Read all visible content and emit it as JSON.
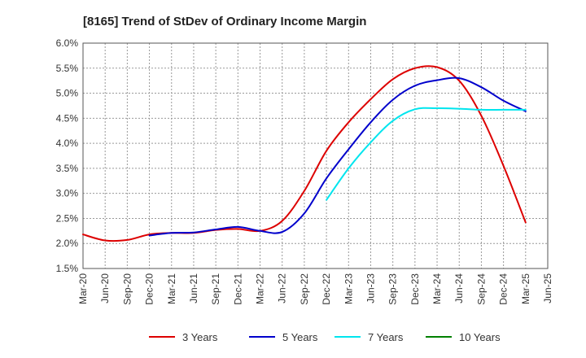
{
  "chart_data": {
    "type": "line",
    "title": "[8165]  Trend of StDev of Ordinary Income Margin",
    "xlabel": "",
    "ylabel": "",
    "x_ticks": [
      "Mar-20",
      "Jun-20",
      "Sep-20",
      "Dec-20",
      "Mar-21",
      "Jun-21",
      "Sep-21",
      "Dec-21",
      "Mar-22",
      "Jun-22",
      "Sep-22",
      "Dec-22",
      "Mar-23",
      "Jun-23",
      "Sep-23",
      "Dec-23",
      "Mar-24",
      "Jun-24",
      "Sep-24",
      "Dec-24",
      "Mar-25",
      "Jun-25"
    ],
    "y_ticks": [
      "1.5%",
      "2.0%",
      "2.5%",
      "3.0%",
      "3.5%",
      "4.0%",
      "4.5%",
      "5.0%",
      "5.5%",
      "6.0%"
    ],
    "ylim": [
      1.5,
      6.0
    ],
    "grid": true,
    "legend_position": "bottom",
    "series": [
      {
        "name": "3 Years",
        "color": "#dd0000",
        "points": [
          [
            "Mar-20",
            2.18
          ],
          [
            "Jun-20",
            2.06
          ],
          [
            "Sep-20",
            2.07
          ],
          [
            "Dec-20",
            2.18
          ],
          [
            "Mar-21",
            2.21
          ],
          [
            "Jun-21",
            2.21
          ],
          [
            "Sep-21",
            2.27
          ],
          [
            "Dec-21",
            2.29
          ],
          [
            "Mar-22",
            2.25
          ],
          [
            "Jun-22",
            2.45
          ],
          [
            "Sep-22",
            3.05
          ],
          [
            "Dec-22",
            3.85
          ],
          [
            "Mar-23",
            4.42
          ],
          [
            "Jun-23",
            4.88
          ],
          [
            "Sep-23",
            5.28
          ],
          [
            "Dec-23",
            5.5
          ],
          [
            "Mar-24",
            5.52
          ],
          [
            "Jun-24",
            5.25
          ],
          [
            "Sep-24",
            4.55
          ],
          [
            "Dec-24",
            3.55
          ],
          [
            "Mar-25",
            2.42
          ]
        ]
      },
      {
        "name": "5 Years",
        "color": "#0000cc",
        "points": [
          [
            "Dec-20",
            2.16
          ],
          [
            "Mar-21",
            2.21
          ],
          [
            "Jun-21",
            2.22
          ],
          [
            "Sep-21",
            2.28
          ],
          [
            "Dec-21",
            2.33
          ],
          [
            "Mar-22",
            2.25
          ],
          [
            "Jun-22",
            2.23
          ],
          [
            "Sep-22",
            2.6
          ],
          [
            "Dec-22",
            3.3
          ],
          [
            "Mar-23",
            3.88
          ],
          [
            "Jun-23",
            4.42
          ],
          [
            "Sep-23",
            4.87
          ],
          [
            "Dec-23",
            5.15
          ],
          [
            "Mar-24",
            5.26
          ],
          [
            "Jun-24",
            5.3
          ],
          [
            "Sep-24",
            5.12
          ],
          [
            "Dec-24",
            4.85
          ],
          [
            "Mar-25",
            4.64
          ]
        ]
      },
      {
        "name": "7 Years",
        "color": "#00e5ee",
        "points": [
          [
            "Dec-22",
            2.87
          ],
          [
            "Mar-23",
            3.5
          ],
          [
            "Jun-23",
            4.02
          ],
          [
            "Sep-23",
            4.45
          ],
          [
            "Dec-23",
            4.68
          ],
          [
            "Mar-24",
            4.7
          ],
          [
            "Jun-24",
            4.69
          ],
          [
            "Sep-24",
            4.67
          ],
          [
            "Dec-24",
            4.67
          ],
          [
            "Mar-25",
            4.67
          ]
        ]
      },
      {
        "name": "10 Years",
        "color": "#008000",
        "points": []
      }
    ]
  }
}
